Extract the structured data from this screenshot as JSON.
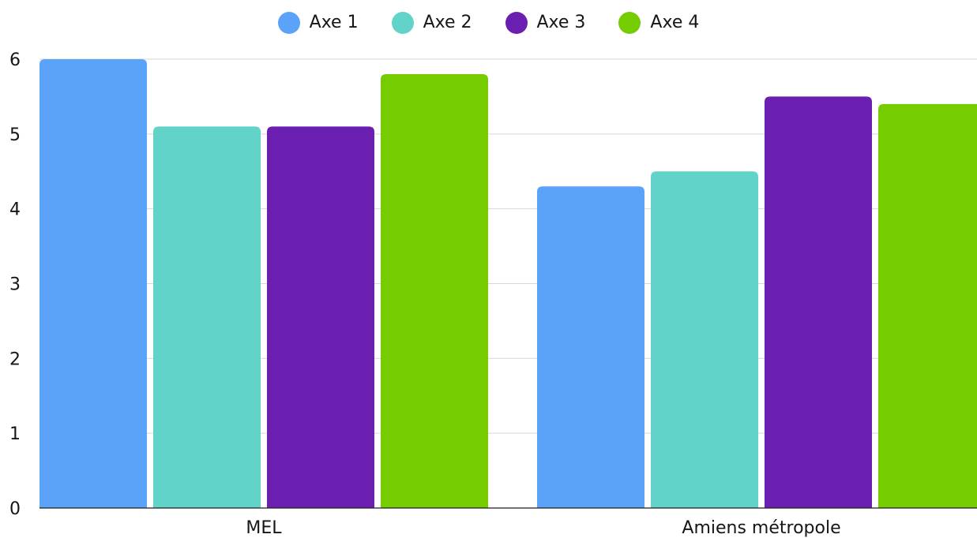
{
  "chart_data": {
    "type": "bar",
    "categories": [
      "MEL",
      "Amiens métropole"
    ],
    "series": [
      {
        "name": "Axe 1",
        "color": "#5ba3f8",
        "values": [
          6.0,
          4.3
        ]
      },
      {
        "name": "Axe 2",
        "color": "#61d3c9",
        "values": [
          5.1,
          4.5
        ]
      },
      {
        "name": "Axe 3",
        "color": "#6a1fb0",
        "values": [
          5.1,
          5.5
        ]
      },
      {
        "name": "Axe 4",
        "color": "#75cc00",
        "values": [
          5.8,
          5.4
        ]
      }
    ],
    "yticks": [
      "0",
      "1",
      "2",
      "3",
      "4",
      "5",
      "6"
    ],
    "ylim": [
      0,
      6
    ],
    "grid": true,
    "legend": "top-center"
  }
}
